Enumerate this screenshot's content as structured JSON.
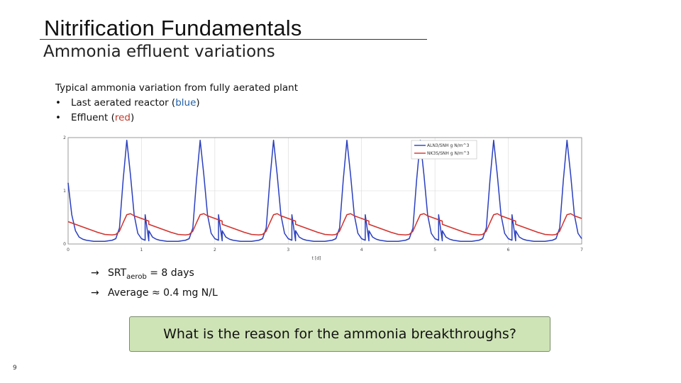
{
  "slide": {
    "title": "Nitrification Fundamentals",
    "subtitle": "Ammonia effluent variations",
    "intro": "Typical ammonia variation from fully aerated plant",
    "bullets": [
      {
        "bullet": "•",
        "prefix": "Last aerated reactor (",
        "word": "blue",
        "suffix": ")"
      },
      {
        "bullet": "•",
        "prefix": "Effluent (",
        "word": "red",
        "suffix": ")"
      }
    ],
    "notes": [
      {
        "arrow": "→",
        "main": "SRT",
        "sub": "aerob",
        "rest": " = 8 days"
      },
      {
        "arrow": "→",
        "text": "Average ≈ 0.4 mg N/L"
      }
    ],
    "question": "What is the reason for the ammonia breakthroughs?",
    "page_number": "9"
  },
  "colors": {
    "blue": "#2a3fbf",
    "red": "#d2322d",
    "question_bg": "#cfe4b6"
  },
  "chart_data": {
    "type": "line",
    "xlabel": "t [d]",
    "ylabel": "",
    "xlim": [
      0,
      7
    ],
    "ylim": [
      0,
      2
    ],
    "x_ticks": [
      "0",
      "1",
      "2",
      "3",
      "4",
      "5",
      "6",
      "7"
    ],
    "y_ticks": [
      "0",
      "1",
      "2"
    ],
    "grid": true,
    "legend_position": "top-right",
    "series": [
      {
        "name": "ALN3/SNH g N/m^3",
        "color": "#2a3fbf",
        "x": [
          0,
          0.05,
          0.1,
          0.15,
          0.2,
          0.25,
          0.3,
          0.35,
          0.4,
          0.45,
          0.5,
          0.55,
          0.6,
          0.65,
          0.7,
          0.75,
          0.8,
          0.85,
          0.9,
          0.95,
          1.0,
          1.05,
          1.1
        ],
        "y": [
          1.15,
          0.55,
          0.25,
          0.13,
          0.09,
          0.07,
          0.06,
          0.05,
          0.05,
          0.05,
          0.05,
          0.06,
          0.07,
          0.1,
          0.3,
          1.2,
          1.95,
          1.3,
          0.55,
          0.2,
          0.1,
          0.07,
          0.06
        ]
      },
      {
        "name": "NK3S/SNH g N/m^3",
        "color": "#d2322d",
        "x": [
          0,
          0.1,
          0.2,
          0.3,
          0.4,
          0.5,
          0.6,
          0.65,
          0.7,
          0.75,
          0.8,
          0.85,
          0.9,
          1.0,
          1.1
        ],
        "y": [
          0.42,
          0.37,
          0.32,
          0.27,
          0.22,
          0.18,
          0.17,
          0.18,
          0.24,
          0.4,
          0.55,
          0.57,
          0.53,
          0.48,
          0.43
        ]
      }
    ],
    "period_days": 1,
    "blue_peak_days": [
      0.8,
      1.8,
      2.8,
      3.8,
      4.8,
      5.8,
      6.8
    ]
  }
}
